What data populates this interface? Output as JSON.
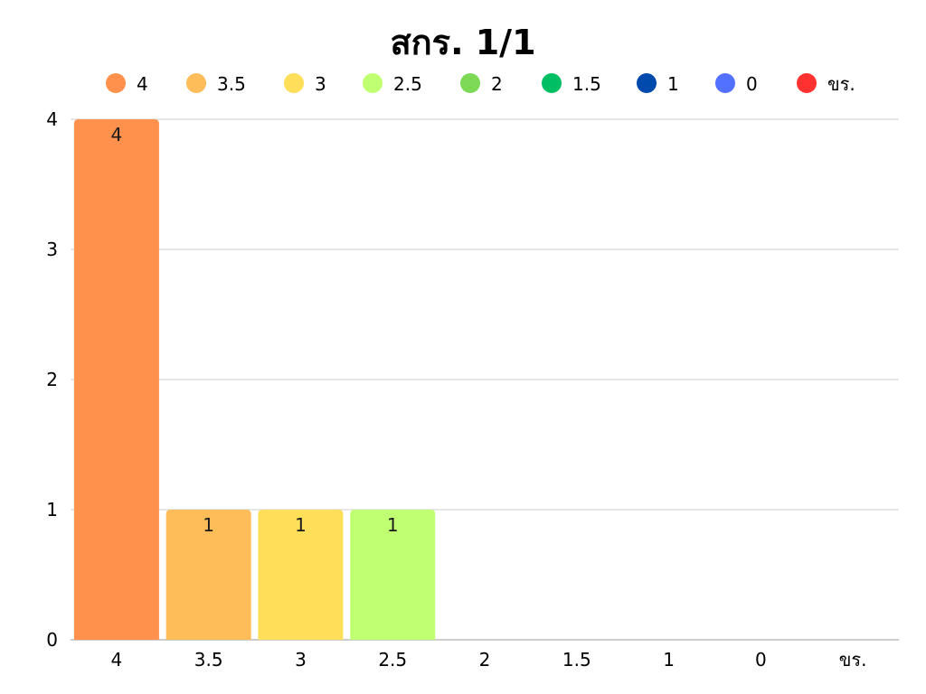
{
  "chart_data": {
    "type": "bar",
    "title": "สกร. 1/1",
    "xlabel": "",
    "ylabel": "",
    "categories": [
      "4",
      "3.5",
      "3",
      "2.5",
      "2",
      "1.5",
      "1",
      "0",
      "ขร."
    ],
    "values": [
      4,
      1,
      1,
      1,
      0,
      0,
      0,
      0,
      0
    ],
    "data_labels": [
      "4",
      "1",
      "1",
      "1",
      "",
      "",
      "",
      "",
      ""
    ],
    "colors": [
      "#FF914D",
      "#FFBD59",
      "#FFDE59",
      "#C1FF72",
      "#7ED957",
      "#00BF63",
      "#004AAD",
      "#5271FF",
      "#FF3131"
    ],
    "legend": {
      "position": "top",
      "entries": [
        "4",
        "3.5",
        "3",
        "2.5",
        "2",
        "1.5",
        "1",
        "0",
        "ขร."
      ]
    },
    "ylim": [
      0,
      4
    ],
    "yticks": [
      0,
      1,
      2,
      3,
      4
    ],
    "grid": true
  }
}
